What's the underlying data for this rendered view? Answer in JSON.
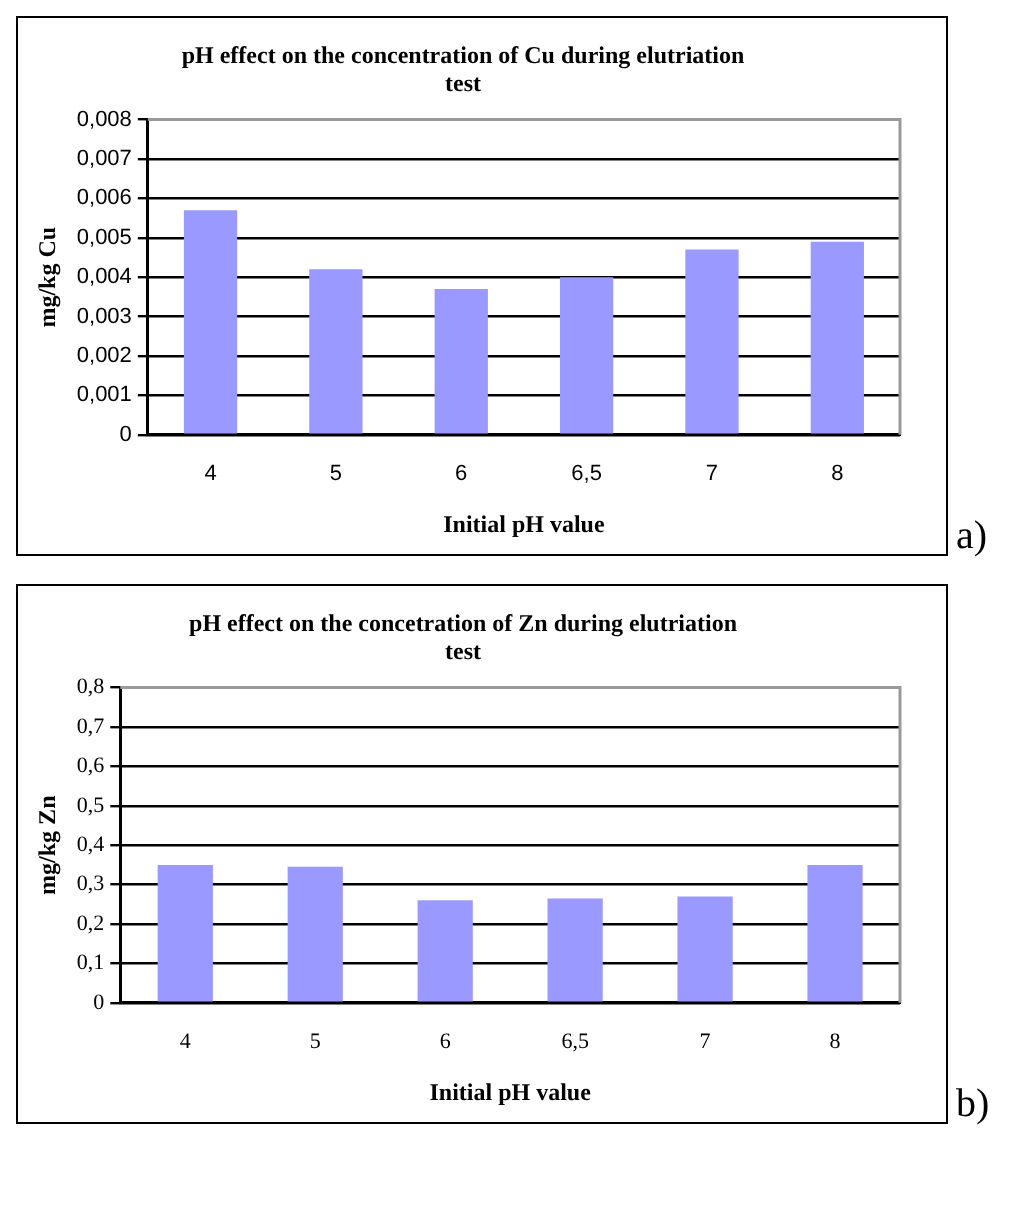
{
  "chart_data": [
    {
      "type": "bar",
      "title": "pH effect on the concentration of Cu during elutriation test",
      "xlabel": "Initial pH value",
      "ylabel": "mg/kg Cu",
      "categories": [
        "4",
        "5",
        "6",
        "6,5",
        "7",
        "8"
      ],
      "values": [
        0.0057,
        0.0042,
        0.0037,
        0.004,
        0.0047,
        0.0049
      ],
      "color": "#9999ff",
      "ylim": [
        0,
        0.008
      ],
      "yticks": [
        0,
        {
          "value": 0.001,
          "label": "0,001"
        },
        {
          "value": 0.002,
          "label": "0,002"
        },
        {
          "value": 0.003,
          "label": "0,003"
        },
        {
          "value": 0.004,
          "label": "0,004"
        },
        {
          "value": 0.005,
          "label": "0,005"
        },
        {
          "value": 0.006,
          "label": "0,006"
        },
        {
          "value": 0.007,
          "label": "0,007"
        },
        {
          "value": 0.008,
          "label": "0,008"
        }
      ],
      "grid": "y",
      "legend": false,
      "annotations": [
        "a)"
      ]
    },
    {
      "type": "bar",
      "title": "pH effect on the concetration of Zn during elutriation test",
      "xlabel": "Initial pH value",
      "ylabel": "mg/kg Zn",
      "categories": [
        "4",
        "5",
        "6",
        "6,5",
        "7",
        "8"
      ],
      "values": [
        0.35,
        0.345,
        0.26,
        0.265,
        0.27,
        0.35
      ],
      "color": "#9999ff",
      "ylim": [
        0,
        0.8
      ],
      "yticks": [
        0,
        {
          "value": 0.1,
          "label": "0,1"
        },
        {
          "value": 0.2,
          "label": "0,2"
        },
        {
          "value": 0.3,
          "label": "0,3"
        },
        {
          "value": 0.4,
          "label": "0,4"
        },
        {
          "value": 0.5,
          "label": "0,5"
        },
        {
          "value": 0.6,
          "label": "0,6"
        },
        {
          "value": 0.7,
          "label": "0,7"
        },
        {
          "value": 0.8,
          "label": "0,8"
        }
      ],
      "grid": "y",
      "legend": false,
      "annotations": [
        "b)"
      ]
    }
  ]
}
